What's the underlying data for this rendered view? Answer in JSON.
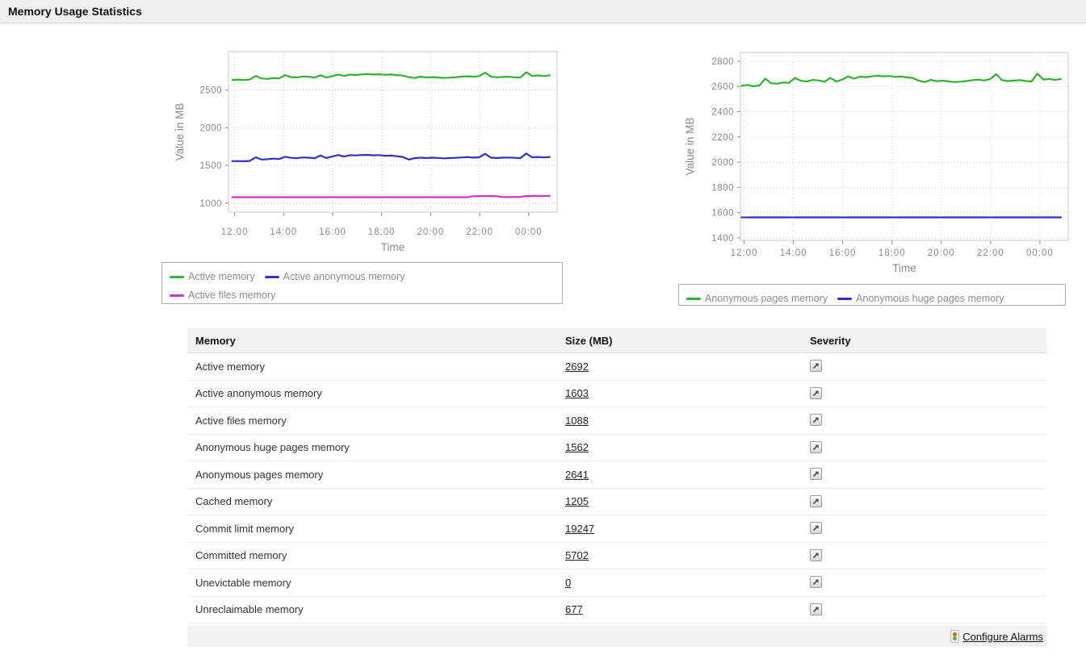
{
  "title_bar": {
    "title": "Memory Usage Statistics"
  },
  "colors": {
    "green": "#2eb32e",
    "blue": "#3030c8",
    "magenta": "#c836c8",
    "axis_text": "#8a8a8a",
    "grid": "#cccccc",
    "plot_border": "#c8c8c8",
    "legend_text": "#8c8c8c"
  },
  "chart_data": [
    {
      "type": "line",
      "title": "",
      "xlabel": "Time",
      "ylabel": "Value in MB",
      "x_tick_labels": [
        "12:00",
        "14:00",
        "16:00",
        "18:00",
        "20:00",
        "22:00",
        "00:00"
      ],
      "x_tick_hours": [
        12,
        14,
        16,
        18,
        20,
        22,
        24
      ],
      "xlim": [
        11.75,
        25.16
      ],
      "ylim": [
        880,
        3010
      ],
      "yticks": [
        1000,
        1500,
        2000,
        2500
      ],
      "grid": true,
      "legend_position": "bottom",
      "t_start": 11.9,
      "t_step": 0.24,
      "series": [
        {
          "name": "Active memory",
          "color": "#2eb32e",
          "values": [
            2635,
            2638,
            2634,
            2640,
            2688,
            2652,
            2648,
            2658,
            2655,
            2698,
            2672,
            2668,
            2680,
            2676,
            2665,
            2696,
            2668,
            2682,
            2706,
            2688,
            2705,
            2700,
            2707,
            2712,
            2706,
            2710,
            2702,
            2706,
            2698,
            2692,
            2672,
            2660,
            2678,
            2668,
            2672,
            2666,
            2660,
            2665,
            2670,
            2678,
            2682,
            2676,
            2686,
            2730,
            2678,
            2670,
            2674,
            2677,
            2670,
            2666,
            2736,
            2688,
            2694,
            2686,
            2695
          ]
        },
        {
          "name": "Active anonymous memory",
          "color": "#3030c8",
          "values": [
            1556,
            1558,
            1555,
            1560,
            1608,
            1578,
            1582,
            1590,
            1585,
            1614,
            1600,
            1596,
            1606,
            1602,
            1595,
            1632,
            1598,
            1618,
            1638,
            1618,
            1636,
            1632,
            1638,
            1640,
            1634,
            1637,
            1628,
            1630,
            1622,
            1612,
            1578,
            1596,
            1602,
            1598,
            1603,
            1599,
            1594,
            1597,
            1600,
            1606,
            1610,
            1604,
            1608,
            1654,
            1602,
            1598,
            1602,
            1605,
            1600,
            1597,
            1658,
            1608,
            1612,
            1606,
            1612
          ]
        },
        {
          "name": "Active files memory",
          "color": "#c836c8",
          "values": [
            1078,
            1078,
            1078,
            1078,
            1078,
            1078,
            1078,
            1078,
            1078,
            1078,
            1078,
            1078,
            1078,
            1078,
            1078,
            1078,
            1078,
            1078,
            1078,
            1078,
            1078,
            1078,
            1078,
            1078,
            1078,
            1078,
            1078,
            1078,
            1078,
            1078,
            1078,
            1078,
            1078,
            1078,
            1078,
            1078,
            1078,
            1078,
            1078,
            1078,
            1078,
            1092,
            1093,
            1092,
            1093,
            1092,
            1080,
            1079,
            1081,
            1080,
            1094,
            1095,
            1094,
            1095,
            1095
          ]
        }
      ]
    },
    {
      "type": "line",
      "title": "",
      "xlabel": "Time",
      "ylabel": "Value in MB",
      "x_tick_labels": [
        "12:00",
        "14:00",
        "16:00",
        "18:00",
        "20:00",
        "22:00",
        "00:00"
      ],
      "x_tick_hours": [
        12,
        14,
        16,
        18,
        20,
        22,
        24
      ],
      "xlim": [
        11.85,
        25.15
      ],
      "ylim": [
        1380,
        2870
      ],
      "yticks": [
        1400,
        1600,
        1800,
        2000,
        2200,
        2400,
        2600,
        2800
      ],
      "grid": true,
      "legend_position": "bottom",
      "t_start": 11.9,
      "t_step": 0.24,
      "series": [
        {
          "name": "Anonymous pages memory",
          "color": "#2eb32e",
          "values": [
            2605,
            2612,
            2602,
            2608,
            2662,
            2625,
            2622,
            2632,
            2628,
            2668,
            2645,
            2640,
            2652,
            2648,
            2638,
            2668,
            2640,
            2655,
            2680,
            2662,
            2678,
            2674,
            2680,
            2685,
            2680,
            2683,
            2676,
            2679,
            2672,
            2666,
            2645,
            2636,
            2652,
            2642,
            2646,
            2640,
            2635,
            2638,
            2643,
            2650,
            2654,
            2648,
            2658,
            2698,
            2650,
            2643,
            2647,
            2650,
            2644,
            2640,
            2702,
            2655,
            2660,
            2652,
            2660
          ]
        },
        {
          "name": "Anonymous huge pages memory",
          "color": "#3030c8",
          "values": [
            1562,
            1562,
            1562,
            1562,
            1562,
            1562,
            1562,
            1562,
            1562,
            1562,
            1562,
            1562,
            1562,
            1562,
            1562,
            1562,
            1562,
            1562,
            1562,
            1562,
            1562,
            1562,
            1562,
            1562,
            1562,
            1562,
            1562,
            1562,
            1562,
            1562,
            1562,
            1562,
            1562,
            1562,
            1562,
            1562,
            1562,
            1562,
            1562,
            1562,
            1562,
            1562,
            1562,
            1562,
            1562,
            1562,
            1562,
            1562,
            1562,
            1562,
            1562,
            1562,
            1562,
            1562,
            1562
          ]
        }
      ]
    }
  ],
  "table": {
    "columns": [
      "Memory",
      "Size (MB)",
      "Severity"
    ],
    "rows": [
      {
        "memory": "Active memory",
        "size": "2692"
      },
      {
        "memory": "Active anonymous memory",
        "size": "1603"
      },
      {
        "memory": "Active files memory",
        "size": "1088"
      },
      {
        "memory": "Anonymous huge pages memory",
        "size": "1562"
      },
      {
        "memory": "Anonymous pages memory",
        "size": "2641"
      },
      {
        "memory": "Cached memory",
        "size": "1205"
      },
      {
        "memory": "Commit limit memory",
        "size": "19247"
      },
      {
        "memory": "Committed memory",
        "size": "5702"
      },
      {
        "memory": "Unevictable memory",
        "size": "0"
      },
      {
        "memory": "Unreclaimable memory",
        "size": "677"
      }
    ],
    "severity_icon": "arrow-up-right-icon"
  },
  "footer": {
    "configure_alarms_label": "Configure Alarms",
    "alarm_icon": "traffic-light-icon"
  }
}
